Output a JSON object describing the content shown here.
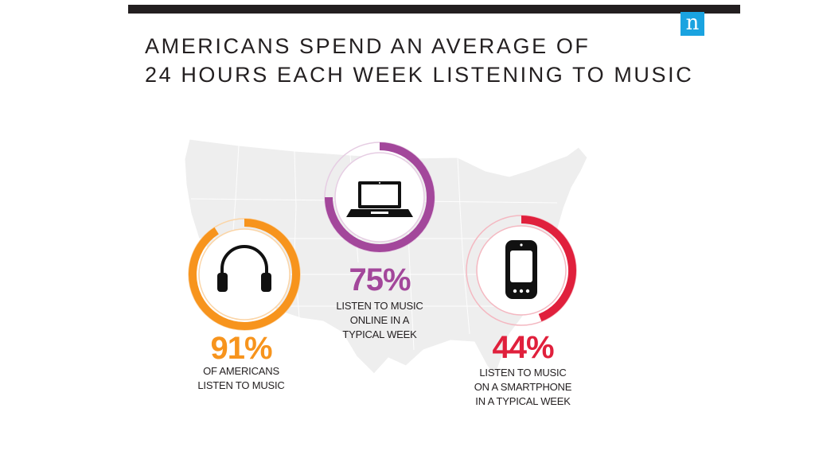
{
  "logo": {
    "letter": "n",
    "color": "#1aa3e0"
  },
  "title": {
    "line1": "AMERICANS SPEND AN AVERAGE OF",
    "line2": "24 HOURS EACH WEEK LISTENING TO MUSIC"
  },
  "chart_data": {
    "type": "donut",
    "series": [
      {
        "value": 91,
        "label": "91%",
        "caption": [
          "OF AMERICANS",
          "LISTEN TO MUSIC"
        ],
        "color": "#f7941d",
        "track": "#fbd5a7",
        "icon": "headphones-icon"
      },
      {
        "value": 75,
        "label": "75%",
        "caption": [
          "LISTEN TO MUSIC",
          "ONLINE IN A",
          "TYPICAL WEEK"
        ],
        "color": "#a3479b",
        "track": "#e6cde3",
        "icon": "laptop-icon"
      },
      {
        "value": 44,
        "label": "44%",
        "caption": [
          "LISTEN TO MUSIC",
          "ON A SMARTPHONE",
          "IN A TYPICAL WEEK"
        ],
        "color": "#e0203c",
        "track": "#f4b8c1",
        "icon": "smartphone-icon"
      }
    ]
  }
}
